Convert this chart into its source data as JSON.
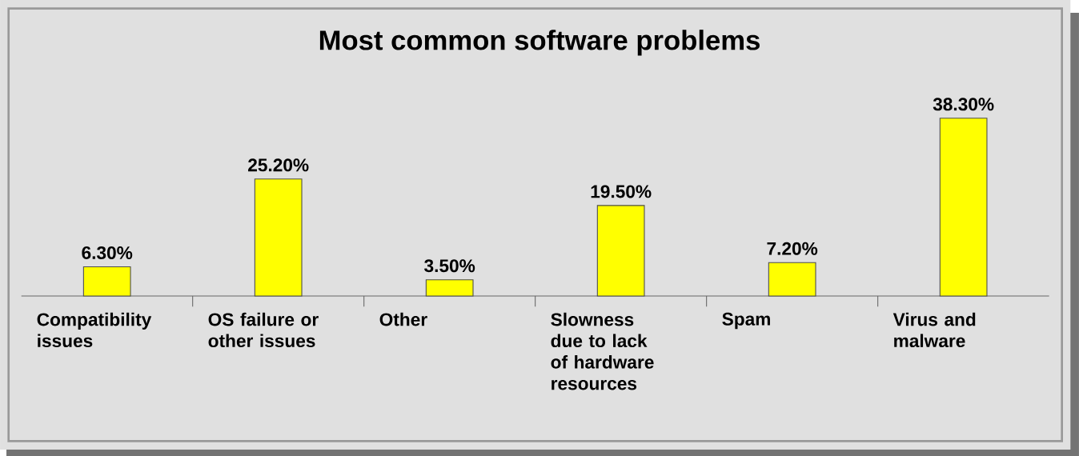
{
  "chart_data": {
    "type": "bar",
    "title": "Most common software problems",
    "categories": [
      "Compatibility issues",
      "OS failure or other issues",
      "Other",
      "Slowness due to lack of hardware resources",
      "Spam",
      "Virus and malware"
    ],
    "values": [
      6.3,
      25.2,
      3.5,
      19.5,
      7.2,
      38.3
    ],
    "value_labels": [
      "6.30%",
      "25.20%",
      "3.50%",
      "19.50%",
      "7.20%",
      "38.30%"
    ],
    "color": "#ffff00"
  }
}
